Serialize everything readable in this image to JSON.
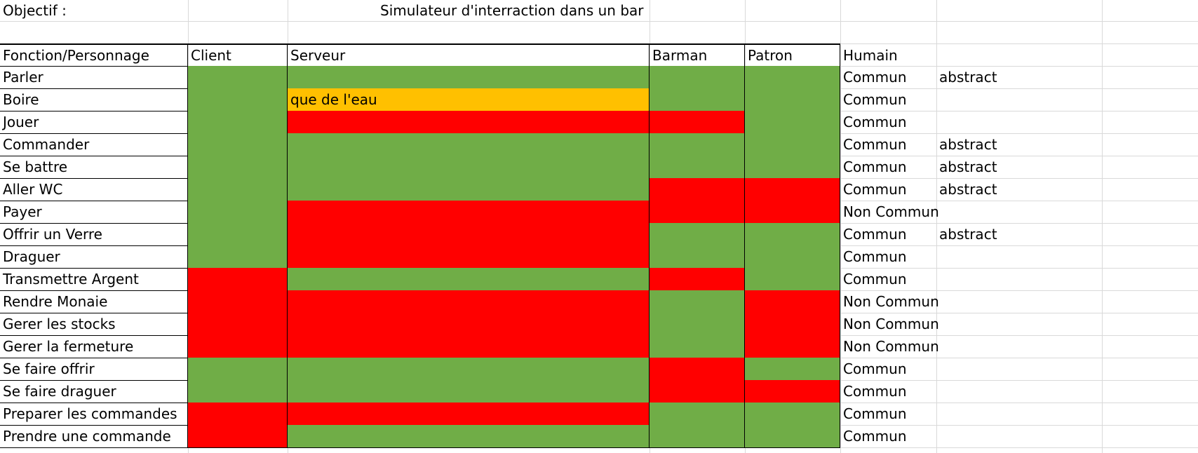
{
  "sheet": {
    "objectif_label": "Objectif :",
    "title": "Simulateur d'interraction dans un bar",
    "header": {
      "fonction": "Fonction/Personnage",
      "client": "Client",
      "serveur": "Serveur",
      "barman": "Barman",
      "patron": "Patron",
      "humain": "Humain"
    },
    "colors": {
      "yes": "#70ad47",
      "no": "#ff0000",
      "partial": "#ffc000"
    },
    "rows": [
      {
        "label": "Parler",
        "client": "yes",
        "serveur": "yes",
        "barman": "yes",
        "patron": "yes",
        "humain": "Commun",
        "extra": "abstract"
      },
      {
        "label": "Boire",
        "client": "yes",
        "serveur": "partial",
        "serveur_text": "que de l'eau",
        "barman": "yes",
        "patron": "yes",
        "humain": "Commun",
        "extra": ""
      },
      {
        "label": "Jouer",
        "client": "yes",
        "serveur": "no",
        "barman": "no",
        "patron": "yes",
        "humain": "Commun",
        "extra": ""
      },
      {
        "label": "Commander",
        "client": "yes",
        "serveur": "yes",
        "barman": "yes",
        "patron": "yes",
        "humain": "Commun",
        "extra": "abstract"
      },
      {
        "label": "Se battre",
        "client": "yes",
        "serveur": "yes",
        "barman": "yes",
        "patron": "yes",
        "humain": "Commun",
        "extra": "abstract"
      },
      {
        "label": "Aller WC",
        "client": "yes",
        "serveur": "yes",
        "barman": "no",
        "patron": "no",
        "humain": "Commun",
        "extra": "abstract"
      },
      {
        "label": "Payer",
        "client": "yes",
        "serveur": "no",
        "barman": "no",
        "patron": "no",
        "humain": "Non Commun",
        "extra": ""
      },
      {
        "label": "Offrir un Verre",
        "client": "yes",
        "serveur": "no",
        "barman": "yes",
        "patron": "yes",
        "humain": "Commun",
        "extra": "abstract"
      },
      {
        "label": "Draguer",
        "client": "yes",
        "serveur": "no",
        "barman": "yes",
        "patron": "yes",
        "humain": "Commun",
        "extra": ""
      },
      {
        "label": "Transmettre Argent",
        "client": "no",
        "serveur": "yes",
        "barman": "no",
        "patron": "yes",
        "humain": "Commun",
        "extra": ""
      },
      {
        "label": "Rendre Monaie",
        "client": "no",
        "serveur": "no",
        "barman": "yes",
        "patron": "no",
        "humain": "Non Commun",
        "extra": ""
      },
      {
        "label": "Gerer les stocks",
        "client": "no",
        "serveur": "no",
        "barman": "yes",
        "patron": "no",
        "humain": "Non Commun",
        "extra": ""
      },
      {
        "label": "Gerer la fermeture",
        "client": "no",
        "serveur": "no",
        "barman": "yes",
        "patron": "no",
        "humain": "Non Commun",
        "extra": ""
      },
      {
        "label": "Se faire offrir",
        "client": "yes",
        "serveur": "yes",
        "barman": "no",
        "patron": "yes",
        "humain": "Commun",
        "extra": ""
      },
      {
        "label": "Se faire draguer",
        "client": "yes",
        "serveur": "yes",
        "barman": "no",
        "patron": "no",
        "humain": "Commun",
        "extra": ""
      },
      {
        "label": "Preparer les commandes",
        "client": "no",
        "serveur": "no",
        "barman": "yes",
        "patron": "yes",
        "humain": "Commun",
        "extra": ""
      },
      {
        "label": "Prendre une commande",
        "client": "no",
        "serveur": "yes",
        "barman": "yes",
        "patron": "yes",
        "humain": "Commun",
        "extra": ""
      }
    ]
  }
}
